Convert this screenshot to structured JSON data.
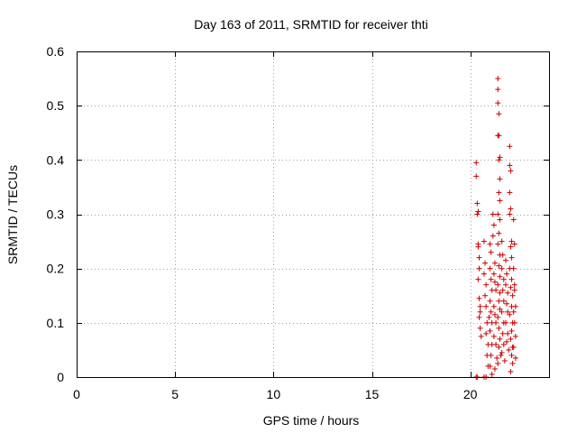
{
  "chart_data": {
    "type": "scatter",
    "title": "Day 163 of 2011, SRMTID for receiver thti",
    "xlabel": "GPS time / hours",
    "ylabel": "SRMTID / TECUs",
    "xlim": [
      0,
      24
    ],
    "ylim": [
      0,
      0.6
    ],
    "xticks": [
      0,
      5,
      10,
      15,
      20
    ],
    "xtick_labels": [
      "0",
      "5",
      "10",
      "15",
      "20"
    ],
    "yticks": [
      0,
      0.1,
      0.2,
      0.3,
      0.4,
      0.5,
      0.6
    ],
    "ytick_labels": [
      "0",
      "0.1",
      "0.2",
      "0.3",
      "0.4",
      "0.5",
      "0.6"
    ],
    "grid": true,
    "marker": "+",
    "color": "#cc0000",
    "series": [
      {
        "name": "SRMTID",
        "points": [
          [
            20.3,
            0.395
          ],
          [
            20.3,
            0.37
          ],
          [
            20.35,
            0.32
          ],
          [
            20.35,
            0.3
          ],
          [
            20.4,
            0.245
          ],
          [
            20.4,
            0.24
          ],
          [
            20.45,
            0.2
          ],
          [
            20.4,
            0.18
          ],
          [
            20.45,
            0.145
          ],
          [
            20.5,
            0.13
          ],
          [
            20.45,
            0.11
          ],
          [
            20.5,
            0.09
          ],
          [
            20.55,
            0.075
          ],
          [
            20.3,
            0.0
          ],
          [
            20.35,
            0.0
          ],
          [
            20.5,
            0.12
          ],
          [
            20.4,
            0.305
          ],
          [
            20.45,
            0.22
          ],
          [
            20.7,
            0.25
          ],
          [
            20.75,
            0.21
          ],
          [
            20.7,
            0.19
          ],
          [
            20.8,
            0.17
          ],
          [
            20.75,
            0.15
          ],
          [
            20.8,
            0.13
          ],
          [
            20.85,
            0.1
          ],
          [
            20.8,
            0.08
          ],
          [
            20.9,
            0.06
          ],
          [
            20.85,
            0.04
          ],
          [
            20.9,
            0.02
          ],
          [
            20.7,
            0.0
          ],
          [
            20.8,
            0.0
          ],
          [
            20.95,
            0.11
          ],
          [
            21.0,
            0.245
          ],
          [
            21.05,
            0.23
          ],
          [
            21.0,
            0.2
          ],
          [
            21.05,
            0.18
          ],
          [
            21.1,
            0.16
          ],
          [
            21.0,
            0.14
          ],
          [
            21.05,
            0.12
          ],
          [
            21.1,
            0.1
          ],
          [
            21.0,
            0.085
          ],
          [
            21.1,
            0.06
          ],
          [
            21.05,
            0.04
          ],
          [
            21.0,
            0.02
          ],
          [
            21.1,
            0.005
          ],
          [
            21.15,
            0.3
          ],
          [
            21.2,
            0.28
          ],
          [
            21.15,
            0.26
          ],
          [
            21.25,
            0.21
          ],
          [
            21.2,
            0.19
          ],
          [
            21.25,
            0.175
          ],
          [
            21.3,
            0.16
          ],
          [
            21.2,
            0.13
          ],
          [
            21.25,
            0.115
          ],
          [
            21.3,
            0.1
          ],
          [
            21.2,
            0.075
          ],
          [
            21.3,
            0.06
          ],
          [
            21.35,
            0.035
          ],
          [
            21.25,
            0.015
          ],
          [
            21.4,
            0.55
          ],
          [
            21.4,
            0.53
          ],
          [
            21.4,
            0.505
          ],
          [
            21.45,
            0.485
          ],
          [
            21.45,
            0.445
          ],
          [
            21.4,
            0.445
          ],
          [
            21.5,
            0.405
          ],
          [
            21.45,
            0.4
          ],
          [
            21.5,
            0.365
          ],
          [
            21.45,
            0.34
          ],
          [
            21.5,
            0.325
          ],
          [
            21.4,
            0.3
          ],
          [
            21.5,
            0.29
          ],
          [
            21.45,
            0.265
          ],
          [
            21.4,
            0.245
          ],
          [
            21.5,
            0.225
          ],
          [
            21.45,
            0.205
          ],
          [
            21.5,
            0.185
          ],
          [
            21.4,
            0.17
          ],
          [
            21.5,
            0.155
          ],
          [
            21.45,
            0.14
          ],
          [
            21.5,
            0.125
          ],
          [
            21.4,
            0.11
          ],
          [
            21.45,
            0.09
          ],
          [
            21.5,
            0.07
          ],
          [
            21.45,
            0.055
          ],
          [
            21.55,
            0.04
          ],
          [
            21.4,
            0.025
          ],
          [
            21.6,
            0.25
          ],
          [
            21.65,
            0.225
          ],
          [
            21.6,
            0.2
          ],
          [
            21.7,
            0.18
          ],
          [
            21.65,
            0.16
          ],
          [
            21.7,
            0.14
          ],
          [
            21.6,
            0.12
          ],
          [
            21.7,
            0.1
          ],
          [
            21.65,
            0.08
          ],
          [
            21.7,
            0.06
          ],
          [
            21.6,
            0.045
          ],
          [
            21.75,
            0.03
          ],
          [
            21.8,
            0.215
          ],
          [
            21.85,
            0.19
          ],
          [
            21.8,
            0.17
          ],
          [
            21.9,
            0.155
          ],
          [
            21.85,
            0.135
          ],
          [
            21.9,
            0.12
          ],
          [
            21.8,
            0.1
          ],
          [
            21.9,
            0.08
          ],
          [
            21.85,
            0.065
          ],
          [
            21.95,
            0.05
          ],
          [
            22.0,
            0.425
          ],
          [
            22.0,
            0.39
          ],
          [
            22.05,
            0.38
          ],
          [
            22.0,
            0.34
          ],
          [
            22.05,
            0.31
          ],
          [
            22.0,
            0.3
          ],
          [
            22.1,
            0.25
          ],
          [
            22.05,
            0.24
          ],
          [
            22.1,
            0.22
          ],
          [
            22.0,
            0.2
          ],
          [
            22.1,
            0.18
          ],
          [
            22.05,
            0.165
          ],
          [
            22.15,
            0.15
          ],
          [
            22.1,
            0.13
          ],
          [
            22.0,
            0.115
          ],
          [
            22.15,
            0.1
          ],
          [
            22.1,
            0.085
          ],
          [
            22.05,
            0.07
          ],
          [
            22.15,
            0.055
          ],
          [
            22.1,
            0.04
          ],
          [
            22.15,
            0.025
          ],
          [
            22.05,
            0.01
          ],
          [
            22.2,
            0.29
          ],
          [
            22.25,
            0.245
          ],
          [
            22.2,
            0.2
          ],
          [
            22.25,
            0.17
          ],
          [
            22.3,
            0.13
          ],
          [
            22.25,
            0.1
          ],
          [
            22.3,
            0.075
          ],
          [
            22.2,
            0.055
          ],
          [
            22.3,
            0.035
          ],
          [
            22.25,
            0.16
          ],
          [
            22.2,
            0.12
          ]
        ]
      }
    ]
  }
}
